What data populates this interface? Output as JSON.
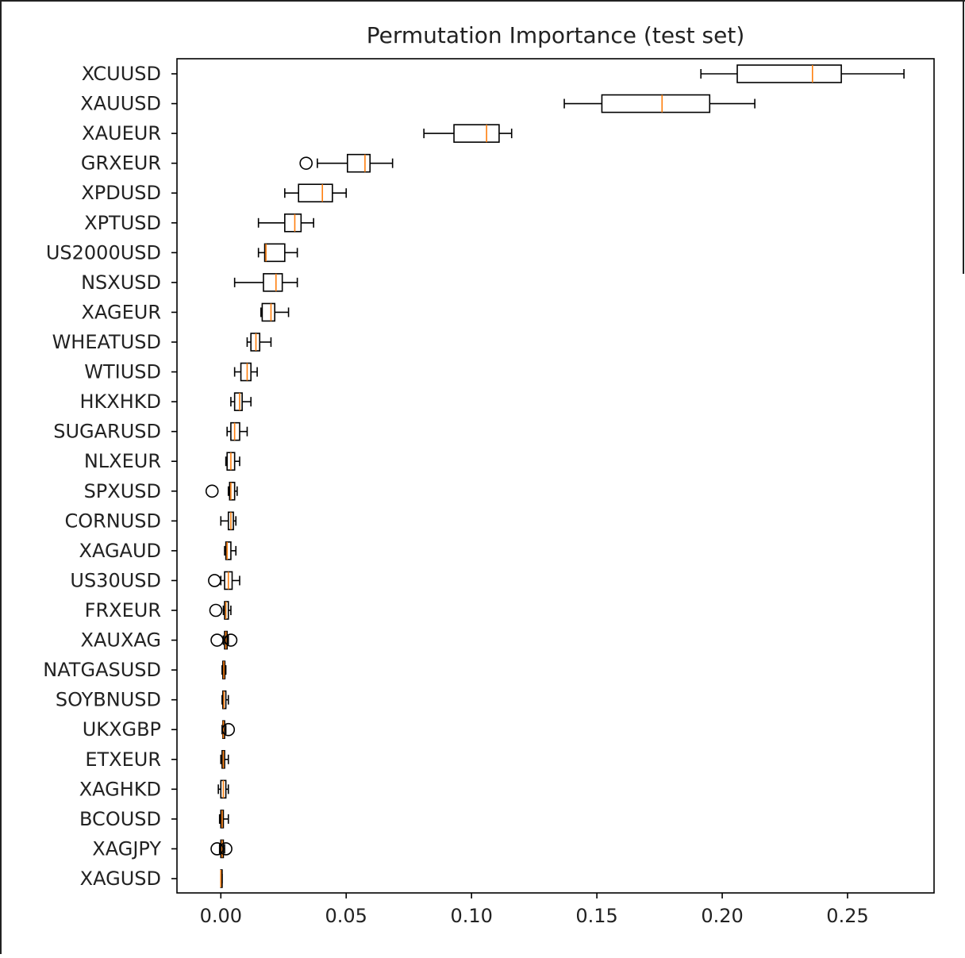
{
  "chart_data": {
    "type": "boxplot",
    "orientation": "horizontal",
    "title": "Permutation Importance (test set)",
    "xlabel": "",
    "ylabel": "",
    "xlim": [
      -0.0175,
      0.2845
    ],
    "xticks": [
      0.0,
      0.05,
      0.1,
      0.15,
      0.2,
      0.25
    ],
    "xtick_labels": [
      "0.00",
      "0.05",
      "0.10",
      "0.15",
      "0.20",
      "0.25"
    ],
    "grid": false,
    "colors": {
      "box": "#000000",
      "median": "#ff7f0e"
    },
    "categories": [
      "XCUUSD",
      "XAUUSD",
      "XAUEUR",
      "GRXEUR",
      "XPDUSD",
      "XPTUSD",
      "US2000USD",
      "NSXUSD",
      "XAGEUR",
      "WHEATUSD",
      "WTIUSD",
      "HKXHKD",
      "SUGARUSD",
      "NLXEUR",
      "SPXUSD",
      "CORNUSD",
      "XAGAUD",
      "US30USD",
      "FRXEUR",
      "XAUXAG",
      "NATGASUSD",
      "SOYBNUSD",
      "UKXGBP",
      "ETXEUR",
      "XAGHKD",
      "BCOUSD",
      "XAGJPY",
      "XAGUSD"
    ],
    "boxes": [
      {
        "whislo": 0.1915,
        "q1": 0.206,
        "median": 0.236,
        "q3": 0.2475,
        "whishi": 0.2725,
        "fliers": []
      },
      {
        "whislo": 0.137,
        "q1": 0.152,
        "median": 0.176,
        "q3": 0.195,
        "whishi": 0.213,
        "fliers": []
      },
      {
        "whislo": 0.081,
        "q1": 0.093,
        "median": 0.106,
        "q3": 0.111,
        "whishi": 0.116,
        "fliers": []
      },
      {
        "whislo": 0.0385,
        "q1": 0.0505,
        "median": 0.0575,
        "q3": 0.0595,
        "whishi": 0.0685,
        "fliers": [
          0.034
        ]
      },
      {
        "whislo": 0.0255,
        "q1": 0.031,
        "median": 0.0405,
        "q3": 0.0445,
        "whishi": 0.05,
        "fliers": []
      },
      {
        "whislo": 0.015,
        "q1": 0.0255,
        "median": 0.0295,
        "q3": 0.032,
        "whishi": 0.037,
        "fliers": []
      },
      {
        "whislo": 0.015,
        "q1": 0.0175,
        "median": 0.018,
        "q3": 0.0255,
        "whishi": 0.0305,
        "fliers": []
      },
      {
        "whislo": 0.0055,
        "q1": 0.017,
        "median": 0.022,
        "q3": 0.0245,
        "whishi": 0.0305,
        "fliers": []
      },
      {
        "whislo": 0.016,
        "q1": 0.0165,
        "median": 0.02,
        "q3": 0.0215,
        "whishi": 0.027,
        "fliers": []
      },
      {
        "whislo": 0.0105,
        "q1": 0.012,
        "median": 0.014,
        "q3": 0.0155,
        "whishi": 0.02,
        "fliers": []
      },
      {
        "whislo": 0.0055,
        "q1": 0.008,
        "median": 0.0105,
        "q3": 0.012,
        "whishi": 0.0145,
        "fliers": []
      },
      {
        "whislo": 0.004,
        "q1": 0.0055,
        "median": 0.0075,
        "q3": 0.0085,
        "whishi": 0.012,
        "fliers": []
      },
      {
        "whislo": 0.0025,
        "q1": 0.004,
        "median": 0.0055,
        "q3": 0.0075,
        "whishi": 0.0105,
        "fliers": []
      },
      {
        "whislo": 0.002,
        "q1": 0.0025,
        "median": 0.004,
        "q3": 0.0055,
        "whishi": 0.0075,
        "fliers": []
      },
      {
        "whislo": 0.003,
        "q1": 0.0035,
        "median": 0.004,
        "q3": 0.0055,
        "whishi": 0.0065,
        "fliers": [
          -0.0035
        ]
      },
      {
        "whislo": 0.0,
        "q1": 0.003,
        "median": 0.004,
        "q3": 0.005,
        "whishi": 0.006,
        "fliers": []
      },
      {
        "whislo": 0.0015,
        "q1": 0.002,
        "median": 0.0025,
        "q3": 0.004,
        "whishi": 0.006,
        "fliers": []
      },
      {
        "whislo": 0.0,
        "q1": 0.0015,
        "median": 0.003,
        "q3": 0.0045,
        "whishi": 0.0075,
        "fliers": [
          -0.0025
        ]
      },
      {
        "whislo": 0.001,
        "q1": 0.0015,
        "median": 0.002,
        "q3": 0.003,
        "whishi": 0.004,
        "fliers": [
          -0.002
        ]
      },
      {
        "whislo": 0.001,
        "q1": 0.0015,
        "median": 0.002,
        "q3": 0.0025,
        "whishi": 0.003,
        "fliers": [
          -0.0015,
          0.004
        ]
      },
      {
        "whislo": 0.0005,
        "q1": 0.0008,
        "median": 0.0012,
        "q3": 0.0016,
        "whishi": 0.002,
        "fliers": []
      },
      {
        "whislo": 0.0005,
        "q1": 0.0008,
        "median": 0.0012,
        "q3": 0.002,
        "whishi": 0.003,
        "fliers": []
      },
      {
        "whislo": 0.0005,
        "q1": 0.0008,
        "median": 0.001,
        "q3": 0.0015,
        "whishi": 0.002,
        "fliers": [
          0.003
        ]
      },
      {
        "whislo": 0.0,
        "q1": 0.0005,
        "median": 0.001,
        "q3": 0.0015,
        "whishi": 0.003,
        "fliers": []
      },
      {
        "whislo": -0.001,
        "q1": 0.0,
        "median": 0.001,
        "q3": 0.002,
        "whishi": 0.003,
        "fliers": []
      },
      {
        "whislo": -0.0005,
        "q1": 0.0,
        "median": 0.0005,
        "q3": 0.001,
        "whishi": 0.003,
        "fliers": []
      },
      {
        "whislo": -0.0005,
        "q1": 0.0,
        "median": 0.0005,
        "q3": 0.001,
        "whishi": 0.0015,
        "fliers": [
          -0.0015,
          0.002
        ]
      },
      {
        "whislo": 0.0,
        "q1": 0.0,
        "median": 0.0,
        "q3": 0.0005,
        "whishi": 0.0005,
        "fliers": []
      }
    ]
  }
}
